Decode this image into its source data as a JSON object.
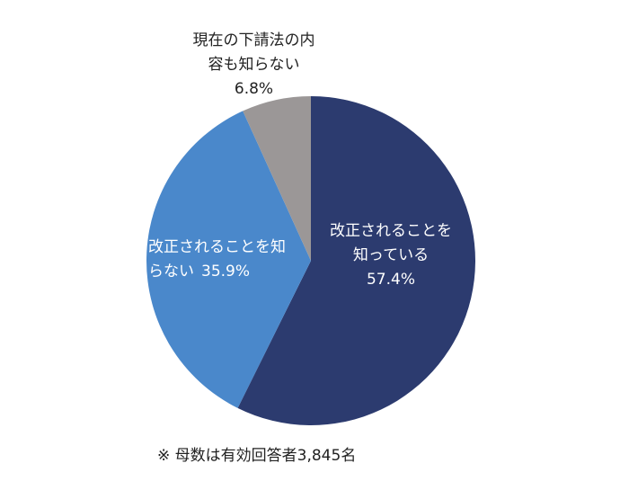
{
  "chart_data": {
    "type": "pie",
    "categories": [
      "改正されることを知っている",
      "改正されることを知らない",
      "現在の下請法の内容も知らない"
    ],
    "values": [
      57.4,
      35.9,
      6.8
    ],
    "value_labels": [
      "57.4%",
      "35.9%",
      "6.8%"
    ],
    "colors": [
      "#2c3b6f",
      "#4a88cb",
      "#9b9797"
    ],
    "note": "※ 母数は有効回答者3,845名"
  }
}
